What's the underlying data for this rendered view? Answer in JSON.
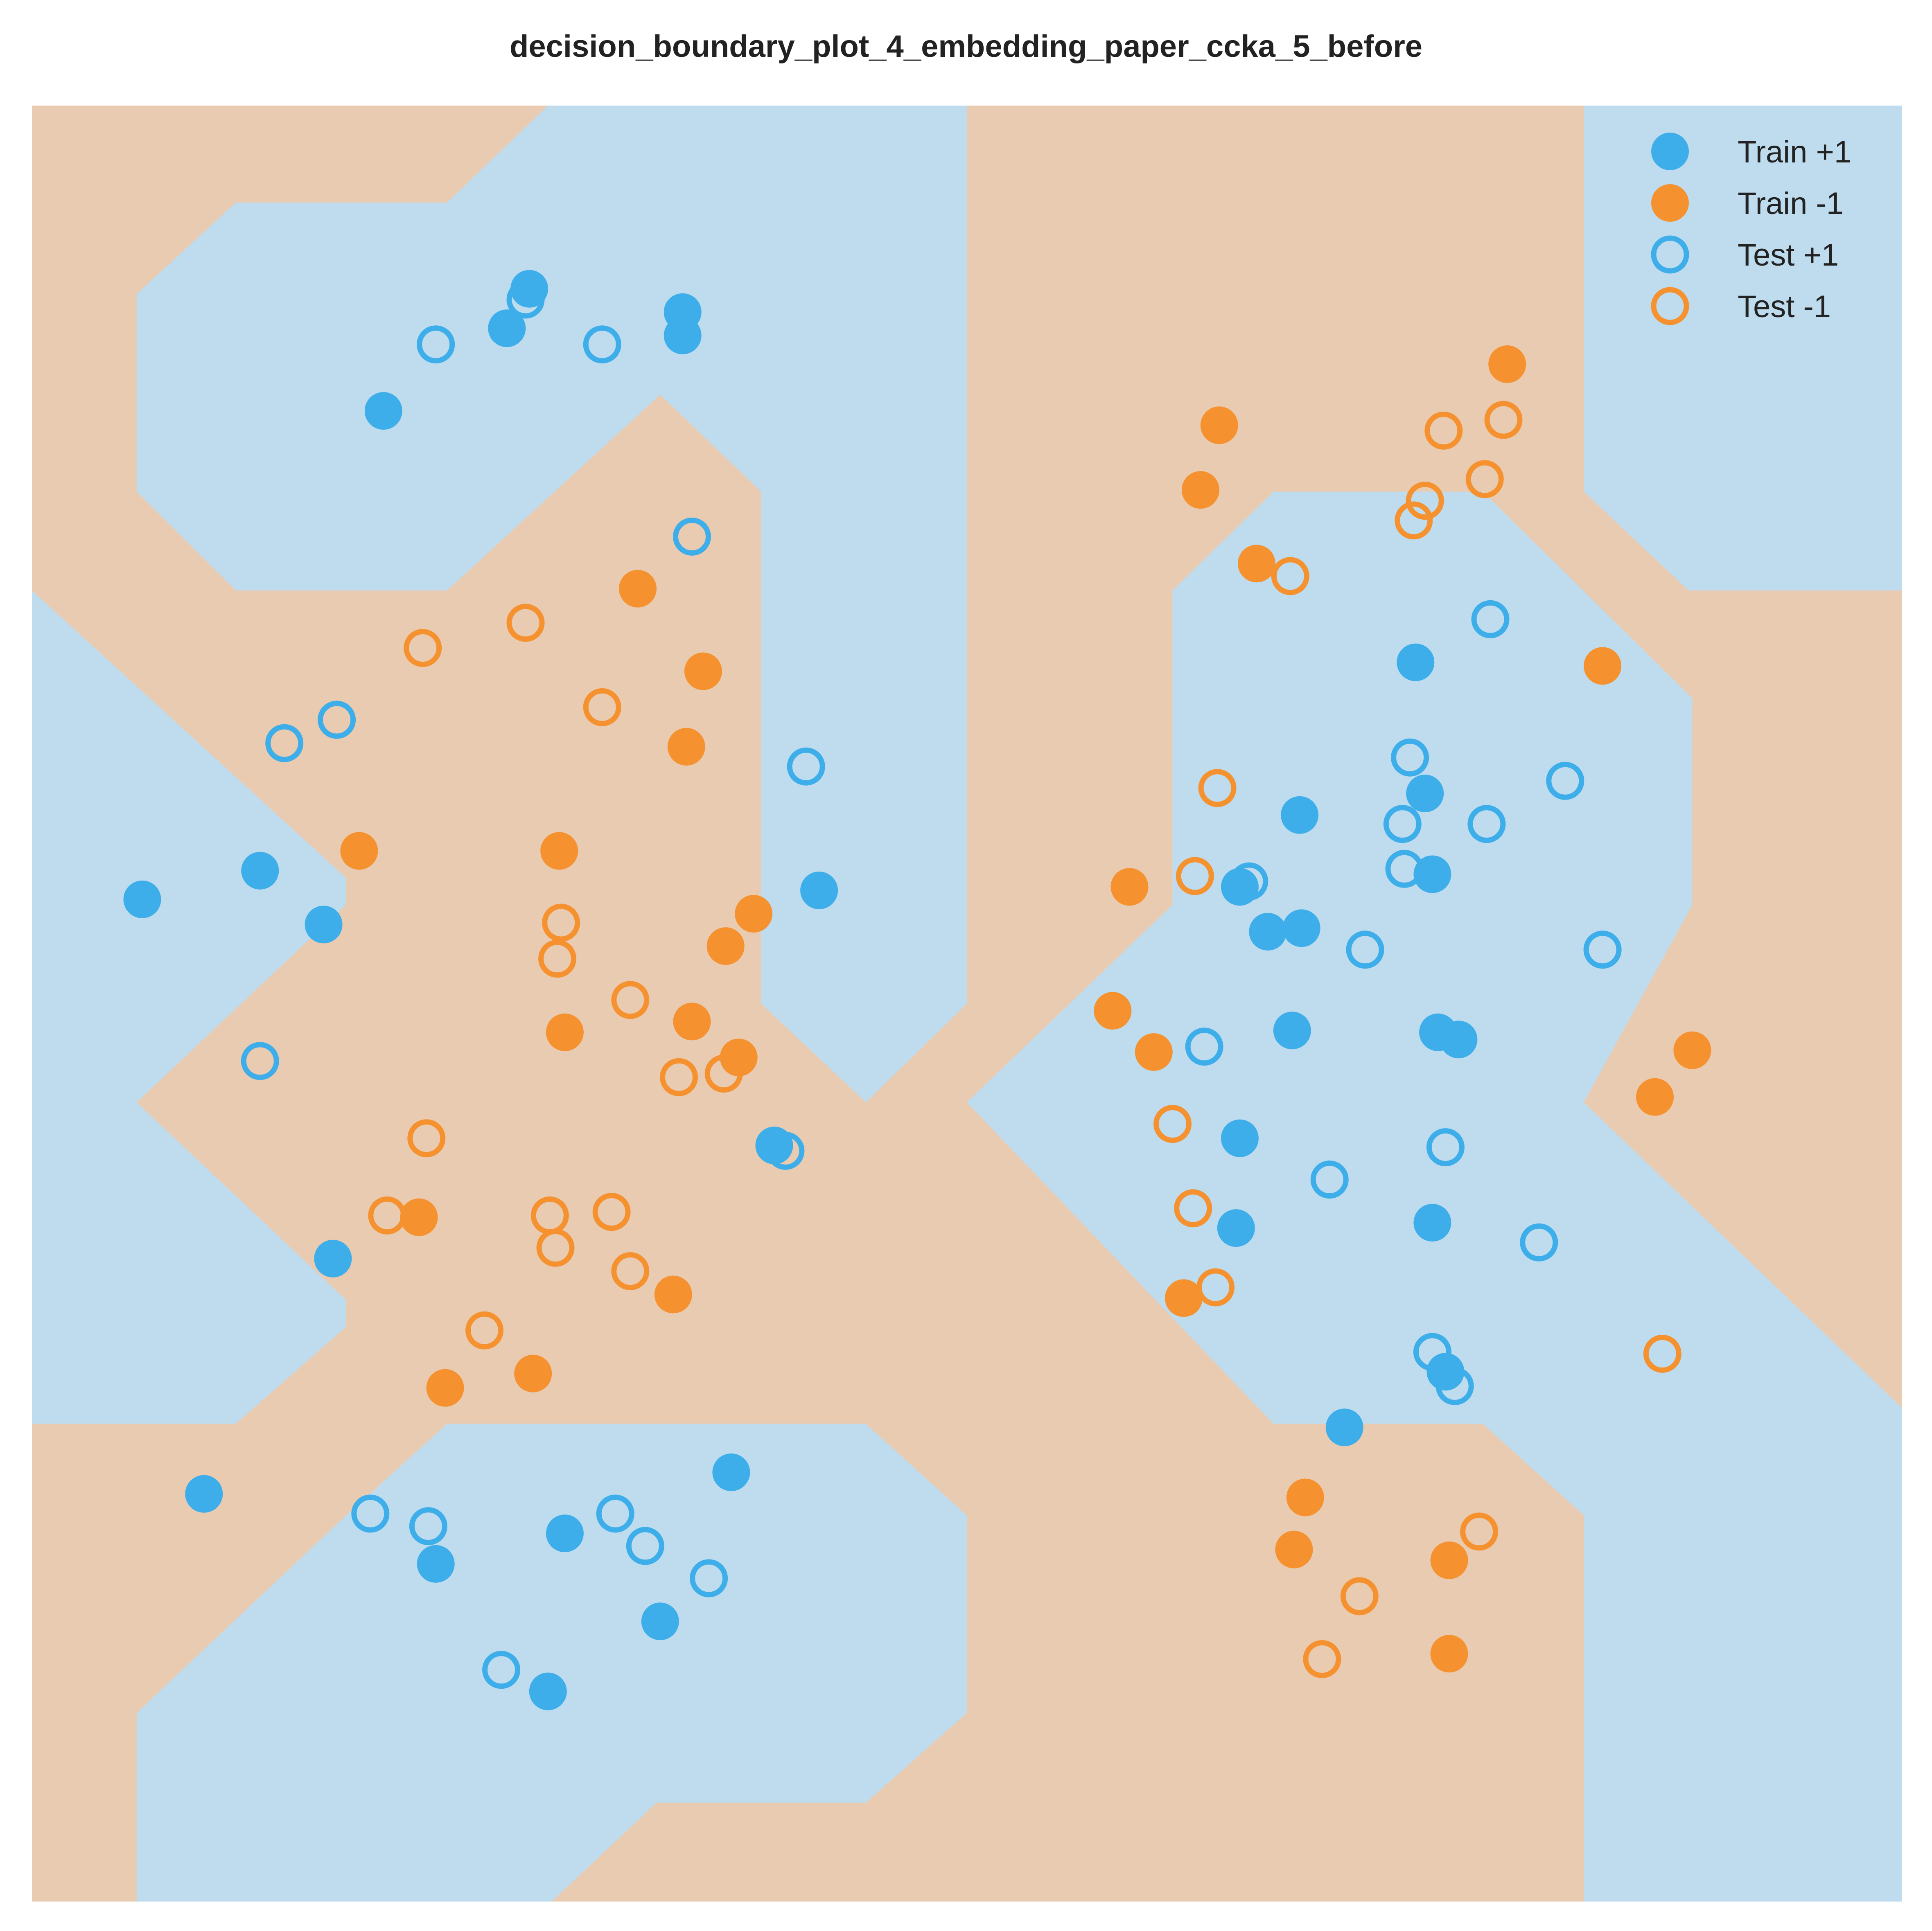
{
  "chart_data": {
    "type": "scatter",
    "title": "decision_boundary_plot_4_embedding_paper_ccka_5_before",
    "xlabel": "",
    "ylabel": "",
    "xlim": [
      0,
      1
    ],
    "ylim": [
      0,
      1
    ],
    "grid": false,
    "legend_position": "top-right",
    "colors": {
      "positive": "#3daee9",
      "negative": "#f5922f",
      "region_positive": "#bedcee",
      "region_negative": "#e9cbb1"
    },
    "decision_regions": [
      {
        "class": "+1",
        "polygon": [
          [
            0.056,
            0.895
          ],
          [
            0.109,
            0.946
          ],
          [
            0.222,
            0.946
          ],
          [
            0.276,
            1.0
          ],
          [
            0.5,
            1.0
          ],
          [
            0.5,
            0.5
          ],
          [
            0.446,
            0.445
          ],
          [
            0.39,
            0.5
          ],
          [
            0.39,
            0.785
          ],
          [
            0.336,
            0.839
          ],
          [
            0.222,
            0.73
          ],
          [
            0.109,
            0.73
          ],
          [
            0.056,
            0.785
          ]
        ]
      },
      {
        "class": "+1",
        "polygon": [
          [
            0.0,
            0.73
          ],
          [
            0.168,
            0.57
          ],
          [
            0.168,
            0.555
          ],
          [
            0.056,
            0.445
          ],
          [
            0.168,
            0.335
          ],
          [
            0.168,
            0.32
          ],
          [
            0.109,
            0.266
          ],
          [
            0.0,
            0.266
          ]
        ]
      },
      {
        "class": "+1",
        "polygon": [
          [
            0.056,
            0.0
          ],
          [
            0.278,
            0.0
          ],
          [
            0.334,
            0.055
          ],
          [
            0.446,
            0.055
          ],
          [
            0.5,
            0.105
          ],
          [
            0.5,
            0.215
          ],
          [
            0.446,
            0.266
          ],
          [
            0.222,
            0.266
          ],
          [
            0.168,
            0.215
          ],
          [
            0.056,
            0.105
          ]
        ]
      },
      {
        "class": "+1",
        "polygon": [
          [
            0.5,
            0.445
          ],
          [
            0.61,
            0.555
          ],
          [
            0.61,
            0.73
          ],
          [
            0.664,
            0.785
          ],
          [
            0.776,
            0.785
          ],
          [
            0.888,
            0.67
          ],
          [
            0.888,
            0.555
          ],
          [
            0.83,
            0.445
          ],
          [
            1.0,
            0.275
          ],
          [
            1.0,
            0.0
          ],
          [
            0.83,
            0.0
          ],
          [
            0.83,
            0.215
          ],
          [
            0.776,
            0.266
          ],
          [
            0.664,
            0.266
          ]
        ]
      },
      {
        "class": "+1",
        "polygon": [
          [
            0.83,
            1.0
          ],
          [
            1.0,
            1.0
          ],
          [
            1.0,
            0.73
          ],
          [
            0.886,
            0.73
          ],
          [
            0.83,
            0.785
          ]
        ]
      }
    ],
    "series": [
      {
        "name": "Train +1",
        "marker": "filled",
        "class": "+1",
        "points": [
          [
            0.188,
            0.83
          ],
          [
            0.254,
            0.876
          ],
          [
            0.266,
            0.898
          ],
          [
            0.348,
            0.885
          ],
          [
            0.348,
            0.872
          ],
          [
            0.122,
            0.574
          ],
          [
            0.156,
            0.544
          ],
          [
            0.161,
            0.358
          ],
          [
            0.421,
            0.563
          ],
          [
            0.397,
            0.421
          ],
          [
            0.059,
            0.558
          ],
          [
            0.285,
            0.205
          ],
          [
            0.092,
            0.227
          ],
          [
            0.216,
            0.188
          ],
          [
            0.336,
            0.156
          ],
          [
            0.374,
            0.239
          ],
          [
            0.276,
            0.117
          ],
          [
            0.74,
            0.69
          ],
          [
            0.678,
            0.605
          ],
          [
            0.745,
            0.617
          ],
          [
            0.646,
            0.565
          ],
          [
            0.661,
            0.54
          ],
          [
            0.679,
            0.542
          ],
          [
            0.674,
            0.485
          ],
          [
            0.646,
            0.425
          ],
          [
            0.644,
            0.375
          ],
          [
            0.749,
            0.572
          ],
          [
            0.752,
            0.484
          ],
          [
            0.763,
            0.48
          ],
          [
            0.749,
            0.378
          ],
          [
            0.756,
            0.295
          ],
          [
            0.702,
            0.264
          ]
        ]
      },
      {
        "name": "Train -1",
        "marker": "filled",
        "class": "-1",
        "points": [
          [
            0.324,
            0.731
          ],
          [
            0.359,
            0.685
          ],
          [
            0.35,
            0.643
          ],
          [
            0.282,
            0.585
          ],
          [
            0.175,
            0.585
          ],
          [
            0.386,
            0.55
          ],
          [
            0.371,
            0.532
          ],
          [
            0.353,
            0.49
          ],
          [
            0.378,
            0.47
          ],
          [
            0.285,
            0.484
          ],
          [
            0.207,
            0.381
          ],
          [
            0.343,
            0.338
          ],
          [
            0.221,
            0.286
          ],
          [
            0.268,
            0.294
          ],
          [
            0.635,
            0.822
          ],
          [
            0.625,
            0.786
          ],
          [
            0.655,
            0.745
          ],
          [
            0.789,
            0.856
          ],
          [
            0.84,
            0.688
          ],
          [
            0.587,
            0.565
          ],
          [
            0.578,
            0.496
          ],
          [
            0.6,
            0.473
          ],
          [
            0.888,
            0.474
          ],
          [
            0.868,
            0.448
          ],
          [
            0.616,
            0.336
          ],
          [
            0.681,
            0.225
          ],
          [
            0.675,
            0.196
          ],
          [
            0.758,
            0.19
          ],
          [
            0.758,
            0.138
          ]
        ]
      },
      {
        "name": "Test +1",
        "marker": "hollow",
        "class": "+1",
        "points": [
          [
            0.264,
            0.892
          ],
          [
            0.216,
            0.867
          ],
          [
            0.305,
            0.867
          ],
          [
            0.353,
            0.76
          ],
          [
            0.163,
            0.658
          ],
          [
            0.135,
            0.645
          ],
          [
            0.414,
            0.632
          ],
          [
            0.122,
            0.468
          ],
          [
            0.403,
            0.418
          ],
          [
            0.181,
            0.216
          ],
          [
            0.212,
            0.209
          ],
          [
            0.312,
            0.216
          ],
          [
            0.328,
            0.198
          ],
          [
            0.362,
            0.18
          ],
          [
            0.251,
            0.129
          ],
          [
            0.78,
            0.714
          ],
          [
            0.737,
            0.637
          ],
          [
            0.733,
            0.6
          ],
          [
            0.778,
            0.6
          ],
          [
            0.82,
            0.624
          ],
          [
            0.734,
            0.575
          ],
          [
            0.651,
            0.568
          ],
          [
            0.713,
            0.53
          ],
          [
            0.84,
            0.53
          ],
          [
            0.627,
            0.476
          ],
          [
            0.694,
            0.402
          ],
          [
            0.756,
            0.42
          ],
          [
            0.806,
            0.367
          ],
          [
            0.749,
            0.306
          ],
          [
            0.761,
            0.287
          ]
        ]
      },
      {
        "name": "Test -1",
        "marker": "hollow",
        "class": "-1",
        "points": [
          [
            0.755,
            0.819
          ],
          [
            0.787,
            0.825
          ],
          [
            0.777,
            0.792
          ],
          [
            0.745,
            0.78
          ],
          [
            0.739,
            0.769
          ],
          [
            0.673,
            0.738
          ],
          [
            0.264,
            0.712
          ],
          [
            0.209,
            0.698
          ],
          [
            0.305,
            0.665
          ],
          [
            0.634,
            0.62
          ],
          [
            0.622,
            0.571
          ],
          [
            0.283,
            0.545
          ],
          [
            0.281,
            0.525
          ],
          [
            0.32,
            0.502
          ],
          [
            0.37,
            0.461
          ],
          [
            0.346,
            0.459
          ],
          [
            0.211,
            0.425
          ],
          [
            0.61,
            0.433
          ],
          [
            0.19,
            0.382
          ],
          [
            0.31,
            0.384
          ],
          [
            0.277,
            0.382
          ],
          [
            0.28,
            0.364
          ],
          [
            0.32,
            0.351
          ],
          [
            0.621,
            0.386
          ],
          [
            0.633,
            0.342
          ],
          [
            0.242,
            0.318
          ],
          [
            0.872,
            0.305
          ],
          [
            0.774,
            0.206
          ],
          [
            0.71,
            0.17
          ],
          [
            0.69,
            0.135
          ]
        ]
      }
    ]
  }
}
